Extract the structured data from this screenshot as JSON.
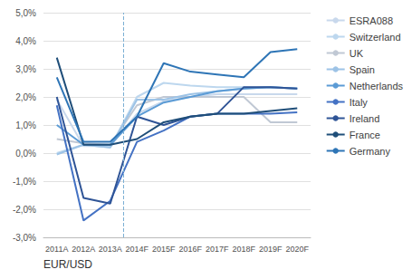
{
  "chart_data": {
    "type": "line",
    "xlabel": "EUR/USD",
    "categories": [
      "2011A",
      "2012A",
      "2013A",
      "2014F",
      "2015F",
      "2016F",
      "2017F",
      "2018F",
      "2019F",
      "2020F"
    ],
    "series": [
      {
        "name": "ESRA088",
        "color": "#C8D8EC",
        "values": [
          1.9,
          0.25,
          0.25,
          1.4,
          1.85,
          2.0,
          2.1,
          2.1,
          2.1,
          2.1
        ]
      },
      {
        "name": "Switzerland",
        "color": "#BDD7EE",
        "values": [
          0.0,
          0.3,
          0.2,
          2.0,
          2.5,
          2.4,
          2.35,
          2.35,
          2.35,
          2.3
        ]
      },
      {
        "name": "UK",
        "color": "#C0C8D4",
        "values": [
          0.5,
          0.35,
          0.3,
          1.7,
          2.0,
          2.0,
          2.0,
          2.0,
          1.1,
          1.1
        ]
      },
      {
        "name": "Spain",
        "color": "#9DC3E6",
        "values": [
          -0.05,
          0.3,
          0.2,
          1.9,
          1.9,
          2.1,
          2.2,
          2.3,
          2.35,
          2.3
        ]
      },
      {
        "name": "Netherlands",
        "color": "#5B9BD5",
        "values": [
          1.0,
          0.3,
          0.3,
          1.3,
          1.8,
          2.0,
          2.2,
          2.3,
          2.35,
          2.3
        ]
      },
      {
        "name": "Italy",
        "color": "#4472C4",
        "values": [
          1.7,
          -2.4,
          -1.7,
          0.4,
          0.8,
          1.3,
          1.4,
          1.4,
          1.4,
          1.45
        ]
      },
      {
        "name": "Ireland",
        "color": "#2F5496",
        "values": [
          2.0,
          -1.6,
          -1.8,
          1.3,
          1.0,
          1.3,
          1.4,
          2.35,
          2.35,
          2.3
        ]
      },
      {
        "name": "France",
        "color": "#1F4E79",
        "values": [
          3.4,
          0.3,
          0.3,
          0.5,
          1.1,
          1.3,
          1.4,
          1.4,
          1.5,
          1.6
        ]
      },
      {
        "name": "Germany",
        "color": "#2E75B6",
        "values": [
          2.7,
          0.4,
          0.4,
          1.3,
          3.2,
          2.9,
          2.8,
          2.7,
          3.6,
          3.7
        ]
      }
    ],
    "ylim": [
      -3.0,
      5.0
    ],
    "yticks": [
      {
        "value": -3.0,
        "label": "-3,0%"
      },
      {
        "value": -2.0,
        "label": "-2,0%"
      },
      {
        "value": -1.0,
        "label": "-1,0%"
      },
      {
        "value": 0.0,
        "label": "0,0%"
      },
      {
        "value": 1.0,
        "label": "1,0%"
      },
      {
        "value": 2.0,
        "label": "2,0%"
      },
      {
        "value": 3.0,
        "label": "3,0%"
      },
      {
        "value": 4.0,
        "label": "4,0%"
      },
      {
        "value": 5.0,
        "label": "5,0%"
      }
    ],
    "grid": true,
    "legend": "right",
    "annotations": [
      {
        "type": "vline",
        "x": 2.5,
        "color": "#7BAFD4",
        "line_style": "dashed"
      }
    ]
  }
}
